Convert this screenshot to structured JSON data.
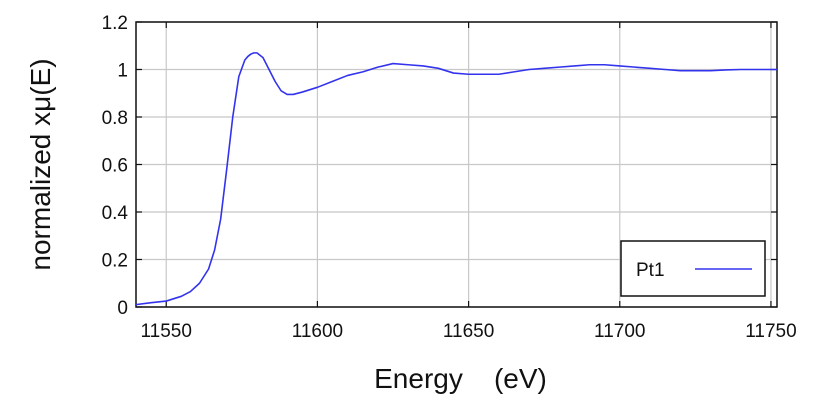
{
  "chart_data": {
    "type": "line",
    "xlabel": "Energy    (eV)",
    "ylabel": "normalized xμ(E)",
    "xlim": [
      11540,
      11752
    ],
    "ylim": [
      0,
      1.2
    ],
    "xticks": [
      11550,
      11600,
      11650,
      11700,
      11750
    ],
    "xtick_labels": [
      "11550",
      "11600",
      "11650",
      "11700",
      "11750"
    ],
    "yticks": [
      0,
      0.2,
      0.4,
      0.6,
      0.8,
      1,
      1.2
    ],
    "ytick_labels": [
      "0",
      "0.2",
      "0.4",
      "0.6",
      "0.8",
      "1",
      "1.2"
    ],
    "grid": true,
    "legend_position": "bottom-right",
    "colors": {
      "series": "#3333ee"
    },
    "series": [
      {
        "name": "Pt1",
        "x": [
          11540,
          11545,
          11550,
          11555,
          11558,
          11561,
          11564,
          11566,
          11568,
          11570,
          11572,
          11574,
          11576,
          11577,
          11578,
          11579,
          11580,
          11581,
          11582,
          11584,
          11586,
          11588,
          11590,
          11592,
          11595,
          11600,
          11605,
          11610,
          11615,
          11620,
          11625,
          11630,
          11635,
          11640,
          11645,
          11650,
          11655,
          11660,
          11665,
          11670,
          11675,
          11680,
          11685,
          11690,
          11695,
          11700,
          11705,
          11710,
          11715,
          11720,
          11725,
          11730,
          11735,
          11740,
          11745,
          11750,
          11752
        ],
        "values": [
          0.01,
          0.018,
          0.025,
          0.045,
          0.065,
          0.1,
          0.16,
          0.24,
          0.37,
          0.58,
          0.8,
          0.97,
          1.04,
          1.055,
          1.065,
          1.07,
          1.07,
          1.06,
          1.05,
          1.0,
          0.95,
          0.91,
          0.895,
          0.895,
          0.905,
          0.925,
          0.95,
          0.975,
          0.99,
          1.01,
          1.025,
          1.02,
          1.015,
          1.005,
          0.985,
          0.98,
          0.98,
          0.98,
          0.99,
          1.0,
          1.005,
          1.01,
          1.015,
          1.02,
          1.02,
          1.015,
          1.01,
          1.005,
          1.0,
          0.995,
          0.995,
          0.995,
          0.998,
          1.0,
          1.0,
          1.0,
          1.0
        ]
      }
    ]
  }
}
